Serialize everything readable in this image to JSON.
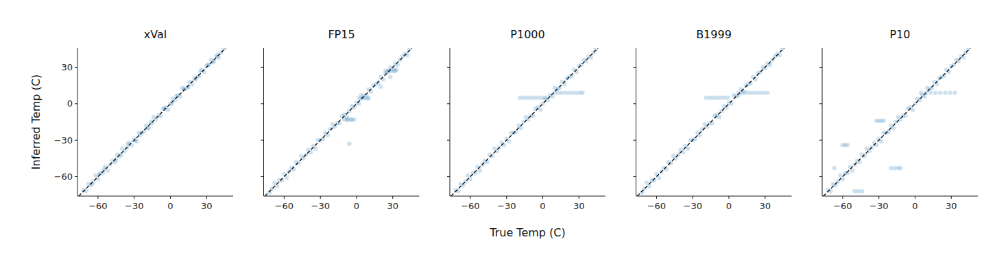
{
  "chart_data": [
    {
      "type": "scatter",
      "title": "xVal",
      "y_label": "Inferred Temp (C)",
      "color": "#1f77b4",
      "xlim": [
        -77,
        52
      ],
      "ylim": [
        -76,
        46
      ],
      "xticks": [
        -60,
        -30,
        0,
        30
      ],
      "yticks": [
        -60,
        -30,
        0,
        30
      ],
      "tick_labels": true,
      "x": [
        -72,
        -70,
        -68,
        -66,
        -64,
        -62,
        -60,
        -58,
        -56,
        -54,
        -52,
        -50,
        -48,
        -46,
        -44,
        -42,
        -40,
        -38,
        -36,
        -34,
        -32,
        -30,
        -28,
        -26,
        -24,
        -22,
        -20,
        -18,
        -16,
        -14,
        -12,
        -10,
        -8,
        -6,
        -4,
        -2,
        0,
        2,
        4,
        6,
        8,
        10,
        12,
        14,
        16,
        18,
        20,
        22,
        24,
        26,
        28,
        30,
        32,
        34,
        36,
        38,
        40,
        42,
        44,
        -65,
        -55,
        -45,
        -35,
        -25,
        -15,
        -5,
        5,
        15,
        25,
        35,
        -59,
        -41,
        -19,
        1,
        11,
        21,
        31,
        39,
        -29
      ],
      "values": [
        -71,
        -72,
        -66,
        -67,
        -64,
        -59,
        -62,
        -57,
        -57,
        -52,
        -55,
        -50,
        -47,
        -48,
        -42,
        -43,
        -37,
        -39,
        -36,
        -32,
        -34,
        -29,
        -31,
        -24,
        -24,
        -23,
        -18,
        -20,
        -15,
        -11,
        -13,
        -10,
        -10,
        -4,
        -3,
        -5,
        0,
        4,
        3,
        7,
        6,
        13,
        12,
        13,
        18,
        16,
        21,
        22,
        23,
        28,
        26,
        31,
        32,
        36,
        35,
        39,
        38,
        42,
        45,
        -66,
        -54,
        -46,
        -33,
        -26,
        -16,
        -4,
        6,
        14,
        27,
        34,
        -58,
        -42,
        -20,
        0,
        12,
        20,
        32,
        40,
        -30
      ]
    },
    {
      "type": "scatter",
      "title": "FP15",
      "color": "#1f77b4",
      "xlim": [
        -77,
        52
      ],
      "ylim": [
        -76,
        46
      ],
      "xticks": [
        -60,
        -30,
        0,
        30
      ],
      "yticks": [
        -60,
        -30,
        0,
        30
      ],
      "tick_labels": "x",
      "x": [
        -72,
        -70,
        -68,
        -66,
        -64,
        -62,
        -60,
        -58,
        -56,
        -54,
        -52,
        -50,
        -48,
        -46,
        -44,
        -42,
        -40,
        -38,
        -36,
        -34,
        -32,
        -30,
        -28,
        -26,
        -24,
        -22,
        -20,
        -18,
        -16,
        -14,
        -12,
        -10,
        -8,
        -6,
        -4,
        -2,
        0,
        2,
        4,
        6,
        8,
        10,
        12,
        14,
        16,
        18,
        20,
        22,
        24,
        26,
        28,
        30,
        32,
        34,
        36,
        38,
        40,
        42,
        44,
        -10,
        -8,
        -7,
        -5,
        -4,
        -2,
        2,
        4,
        5,
        7,
        9,
        10,
        24,
        26,
        27,
        29,
        31,
        32,
        -6,
        28,
        33,
        20
      ],
      "values": [
        -73,
        -70,
        -65,
        -68,
        -63,
        -63,
        -58,
        -61,
        -56,
        -53,
        -54,
        -48,
        -49,
        -43,
        -45,
        -42,
        -38,
        -40,
        -35,
        -37,
        -30,
        -30,
        -29,
        -24,
        -26,
        -21,
        -17,
        -19,
        -16,
        -16,
        -10,
        -9,
        -11,
        -6,
        -2,
        -3,
        1,
        0,
        7,
        6,
        7,
        12,
        10,
        15,
        16,
        17,
        22,
        20,
        25,
        26,
        30,
        29,
        33,
        32,
        36,
        39,
        41,
        40,
        45,
        -13,
        -13,
        -13,
        -13,
        -13,
        -13,
        5,
        4,
        5,
        5,
        4,
        5,
        27,
        27,
        27,
        27,
        27,
        27,
        -33,
        22,
        28,
        14
      ]
    },
    {
      "type": "scatter",
      "title": "P1000",
      "x_label": "True Temp (C)",
      "color": "#1f77b4",
      "xlim": [
        -77,
        52
      ],
      "ylim": [
        -76,
        46
      ],
      "xticks": [
        -60,
        -30,
        0,
        30
      ],
      "yticks": [
        -60,
        -30,
        0,
        30
      ],
      "tick_labels": "x",
      "x": [
        -72,
        -70,
        -68,
        -66,
        -64,
        -62,
        -60,
        -58,
        -56,
        -54,
        -52,
        -50,
        -48,
        -46,
        -44,
        -42,
        -40,
        -38,
        -36,
        -34,
        -32,
        -30,
        -28,
        -26,
        -24,
        -22,
        -20,
        -18,
        -16,
        -14,
        -12,
        -10,
        -8,
        -6,
        -4,
        -2,
        0,
        2,
        4,
        6,
        8,
        10,
        12,
        14,
        16,
        18,
        20,
        22,
        24,
        26,
        28,
        30,
        32,
        34,
        36,
        38,
        40,
        42,
        44,
        -19,
        -16,
        -13,
        -10,
        -7,
        -4,
        -1,
        2,
        10,
        13,
        16,
        19,
        22,
        25,
        28,
        31,
        33
      ],
      "values": [
        -71,
        -72,
        -66,
        -67,
        -64,
        -59,
        -62,
        -57,
        -57,
        -52,
        -55,
        -50,
        -47,
        -48,
        -42,
        -43,
        -37,
        -39,
        -36,
        -32,
        -34,
        -29,
        -31,
        -24,
        -24,
        -23,
        -18,
        -20,
        -15,
        -11,
        -13,
        -10,
        -10,
        -4,
        -3,
        -5,
        0,
        4,
        3,
        7,
        6,
        13,
        12,
        13,
        18,
        16,
        21,
        22,
        23,
        28,
        26,
        31,
        32,
        36,
        35,
        39,
        38,
        42,
        45,
        5,
        5,
        5,
        5,
        5,
        5,
        5,
        5,
        9,
        9,
        9,
        9,
        9,
        9,
        9,
        9,
        9
      ]
    },
    {
      "type": "scatter",
      "title": "B1999",
      "color": "#1f77b4",
      "xlim": [
        -77,
        52
      ],
      "ylim": [
        -76,
        46
      ],
      "xticks": [
        -60,
        -30,
        0,
        30
      ],
      "yticks": [
        -60,
        -30,
        0,
        30
      ],
      "tick_labels": "x",
      "x": [
        -72,
        -70,
        -68,
        -66,
        -64,
        -62,
        -60,
        -58,
        -56,
        -54,
        -52,
        -50,
        -48,
        -46,
        -44,
        -42,
        -40,
        -38,
        -36,
        -34,
        -32,
        -30,
        -28,
        -26,
        -24,
        -22,
        -20,
        -18,
        -16,
        -14,
        -12,
        -10,
        -8,
        -6,
        -4,
        -2,
        0,
        2,
        4,
        6,
        8,
        10,
        12,
        14,
        16,
        18,
        20,
        22,
        24,
        26,
        28,
        30,
        32,
        34,
        36,
        38,
        40,
        42,
        44,
        -19,
        -16,
        -13,
        -10,
        -7,
        -4,
        -1,
        8,
        11,
        14,
        17,
        20,
        23,
        26,
        29,
        32
      ],
      "values": [
        -73,
        -70,
        -65,
        -68,
        -63,
        -63,
        -58,
        -61,
        -56,
        -53,
        -54,
        -48,
        -49,
        -43,
        -45,
        -42,
        -38,
        -40,
        -35,
        -37,
        -30,
        -30,
        -29,
        -24,
        -26,
        -21,
        -17,
        -19,
        -16,
        -16,
        -10,
        -9,
        -11,
        -6,
        -2,
        -3,
        1,
        0,
        7,
        6,
        7,
        12,
        10,
        15,
        16,
        17,
        22,
        20,
        25,
        26,
        30,
        29,
        33,
        32,
        36,
        39,
        41,
        40,
        45,
        5,
        5,
        5,
        5,
        5,
        5,
        5,
        9,
        9,
        9,
        9,
        9,
        9,
        9,
        9,
        9
      ]
    },
    {
      "type": "scatter",
      "title": "P10",
      "color": "#1f77b4",
      "xlim": [
        -77,
        52
      ],
      "ylim": [
        -76,
        46
      ],
      "xticks": [
        -60,
        -30,
        0,
        30
      ],
      "yticks": [
        -60,
        -30,
        0,
        30
      ],
      "tick_labels": "x",
      "x": [
        -72,
        -70,
        -68,
        -66,
        -64,
        -62,
        -60,
        -58,
        -56,
        -54,
        -52,
        -50,
        -48,
        -46,
        -44,
        -42,
        -40,
        -38,
        -36,
        -34,
        -32,
        -30,
        -28,
        -26,
        -24,
        -22,
        -20,
        -18,
        -16,
        -14,
        -12,
        -10,
        -8,
        -6,
        -4,
        -2,
        0,
        2,
        4,
        6,
        8,
        10,
        12,
        14,
        16,
        18,
        20,
        22,
        24,
        26,
        28,
        30,
        32,
        34,
        36,
        38,
        40,
        42,
        44,
        5,
        9,
        13,
        17,
        21,
        25,
        29,
        33,
        -32,
        -30,
        -28,
        -26,
        -60,
        -58,
        -56,
        -20,
        -17,
        -14,
        -12,
        -50,
        -47,
        -44,
        -67
      ],
      "values": [
        -71,
        -72,
        -66,
        -67,
        -64,
        -59,
        -62,
        -57,
        -57,
        -52,
        -55,
        -50,
        -47,
        -48,
        -42,
        -43,
        -37,
        -39,
        -36,
        -32,
        -34,
        -29,
        -31,
        -24,
        -24,
        -23,
        -18,
        -20,
        -15,
        -11,
        -13,
        -10,
        -10,
        -4,
        -3,
        -5,
        0,
        4,
        3,
        7,
        6,
        13,
        12,
        13,
        18,
        16,
        21,
        22,
        23,
        28,
        26,
        31,
        32,
        36,
        35,
        39,
        38,
        42,
        45,
        9,
        9,
        9,
        9,
        9,
        9,
        9,
        9,
        -14,
        -14,
        -14,
        -14,
        -34,
        -34,
        -34,
        -53,
        -53,
        -53,
        -53,
        -72,
        -72,
        -72,
        -53
      ]
    }
  ]
}
